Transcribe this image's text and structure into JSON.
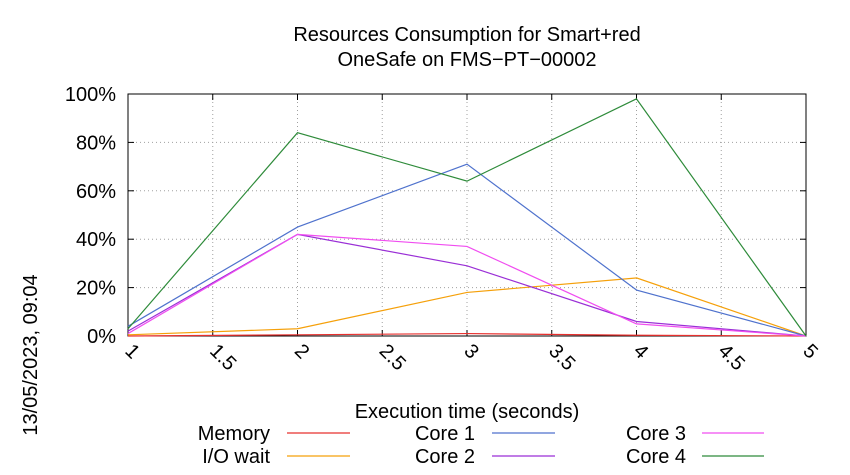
{
  "side_label": "13/05/2023, 09:04",
  "chart_data": {
    "type": "line",
    "title_lines": [
      "Resources Consumption for Smart+red",
      "OneSafe on FMS−PT−00002"
    ],
    "xlabel": "Execution time (seconds)",
    "ylabel": "",
    "xlim": [
      1,
      5
    ],
    "ylim": [
      0,
      100
    ],
    "x_ticks": [
      "1",
      "1.5",
      "2",
      "2.5",
      "3",
      "3.5",
      "4",
      "4.5",
      "5"
    ],
    "y_ticks": [
      "0%",
      "20%",
      "40%",
      "60%",
      "80%",
      "100%"
    ],
    "grid": true,
    "legend_position": "bottom",
    "x": [
      1,
      2,
      3,
      4,
      5
    ],
    "series": [
      {
        "name": "Memory",
        "color": "#e8302e",
        "values": [
          0,
          0.5,
          1,
          0.3,
          0
        ]
      },
      {
        "name": "I/O wait",
        "color": "#f5a00a",
        "values": [
          0.5,
          3,
          18,
          24,
          0
        ]
      },
      {
        "name": "Core 1",
        "color": "#4f72cd",
        "values": [
          4,
          45,
          71,
          19,
          0
        ]
      },
      {
        "name": "Core 2",
        "color": "#9a2fd6",
        "values": [
          2,
          42,
          29,
          6,
          0
        ]
      },
      {
        "name": "Core 3",
        "color": "#f04df0",
        "values": [
          1,
          42,
          37,
          5,
          0
        ]
      },
      {
        "name": "Core 4",
        "color": "#2e8b3a",
        "values": [
          3,
          84,
          64,
          98,
          0
        ]
      }
    ]
  }
}
